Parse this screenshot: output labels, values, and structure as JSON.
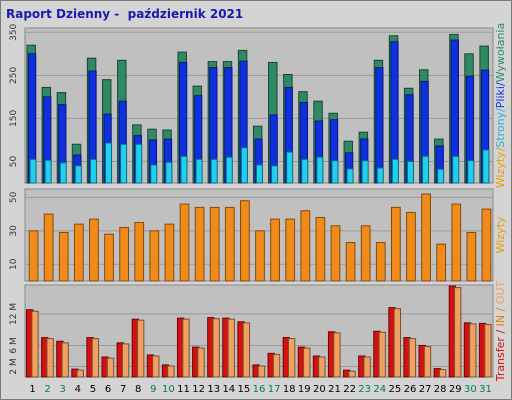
{
  "title": "Raport Dzienny -  październik 2021",
  "chart_data": [
    {
      "type": "bar",
      "panel": "top",
      "categories": [
        "1",
        "2",
        "3",
        "4",
        "5",
        "6",
        "7",
        "8",
        "9",
        "10",
        "11",
        "12",
        "13",
        "14",
        "15",
        "16",
        "17",
        "18",
        "19",
        "20",
        "21",
        "22",
        "23",
        "24",
        "25",
        "26",
        "27",
        "28",
        "29",
        "30",
        "31"
      ],
      "weekend_days": [
        "2",
        "3",
        "9",
        "10",
        "16",
        "17",
        "23",
        "24",
        "30",
        "31"
      ],
      "ylabel_parts": [
        "Wizyty",
        "Strony",
        "Pliki",
        "Wywołania"
      ],
      "ylabel_separator": "/",
      "ylim": [
        0,
        360
      ],
      "yticks": [
        50,
        150,
        250,
        350
      ],
      "series": [
        {
          "name": "Wywołania",
          "color": "#2f8a63",
          "values": [
            320,
            222,
            210,
            90,
            290,
            240,
            285,
            135,
            125,
            123,
            304,
            225,
            282,
            282,
            308,
            132,
            280,
            252,
            212,
            190,
            162,
            97,
            118,
            285,
            342,
            220,
            263,
            102,
            345,
            300,
            318
          ]
        },
        {
          "name": "Pliki",
          "color": "#1030e0",
          "values": [
            300,
            200,
            182,
            65,
            260,
            160,
            190,
            110,
            100,
            102,
            280,
            203,
            268,
            268,
            283,
            102,
            158,
            222,
            187,
            144,
            147,
            70,
            102,
            268,
            328,
            205,
            236,
            86,
            332,
            248,
            262
          ]
        },
        {
          "name": "Strony",
          "color": "#20d0f0",
          "values": [
            55,
            53,
            47,
            40,
            55,
            93,
            90,
            90,
            42,
            48,
            62,
            55,
            55,
            60,
            82,
            42,
            40,
            72,
            55,
            60,
            52,
            33,
            52,
            35,
            55,
            50,
            62,
            32,
            62,
            52,
            77
          ]
        }
      ]
    },
    {
      "type": "bar",
      "panel": "middle",
      "categories": [
        "1",
        "2",
        "3",
        "4",
        "5",
        "6",
        "7",
        "8",
        "9",
        "10",
        "11",
        "12",
        "13",
        "14",
        "15",
        "16",
        "17",
        "18",
        "19",
        "20",
        "21",
        "22",
        "23",
        "24",
        "25",
        "26",
        "27",
        "28",
        "29",
        "30",
        "31"
      ],
      "ylabel": "Wizyty",
      "ylim": [
        0,
        55
      ],
      "yticks": [
        10,
        30,
        50
      ],
      "series": [
        {
          "name": "Wizyty",
          "color": "#f08a18",
          "values": [
            30,
            40,
            29,
            34,
            37,
            28,
            32,
            35,
            30,
            34,
            46,
            44,
            44,
            44,
            48,
            30,
            37,
            37,
            42,
            38,
            33,
            23,
            33,
            23,
            44,
            41,
            52,
            22,
            46,
            29,
            43
          ]
        }
      ]
    },
    {
      "type": "bar",
      "panel": "bottom",
      "categories": [
        "1",
        "2",
        "3",
        "4",
        "5",
        "6",
        "7",
        "8",
        "9",
        "10",
        "11",
        "12",
        "13",
        "14",
        "15",
        "16",
        "17",
        "18",
        "19",
        "20",
        "21",
        "22",
        "23",
        "24",
        "25",
        "26",
        "27",
        "28",
        "29",
        "30",
        "31"
      ],
      "ylabel_parts": [
        "Transfer",
        "IN",
        "OUT"
      ],
      "ylabel_separator": "/",
      "ylim": [
        0,
        17.5
      ],
      "yticks": [
        2,
        6,
        12
      ],
      "ytick_labels": [
        "2 M",
        "6 M",
        "12 M"
      ],
      "series": [
        {
          "name": "IN",
          "color": "#d41010",
          "values": [
            12.8,
            7.5,
            6.8,
            1.5,
            7.5,
            3.8,
            6.5,
            11.0,
            4.2,
            2.3,
            11.2,
            5.7,
            11.3,
            11.2,
            10.5,
            2.3,
            4.5,
            7.5,
            5.7,
            4.0,
            8.6,
            1.3,
            4.0,
            8.7,
            13.2,
            7.5,
            6.0,
            1.6,
            17.3,
            10.3,
            10.2
          ]
        },
        {
          "name": "OUT",
          "color": "#f0a060",
          "values": [
            12.5,
            7.3,
            6.5,
            1.3,
            7.3,
            3.6,
            6.3,
            10.8,
            4.0,
            2.1,
            11.0,
            5.5,
            11.1,
            11.0,
            10.3,
            2.1,
            4.3,
            7.3,
            5.5,
            3.8,
            8.4,
            1.1,
            3.8,
            8.5,
            13.0,
            7.3,
            5.8,
            1.4,
            17.0,
            10.1,
            10.0
          ]
        }
      ]
    }
  ]
}
